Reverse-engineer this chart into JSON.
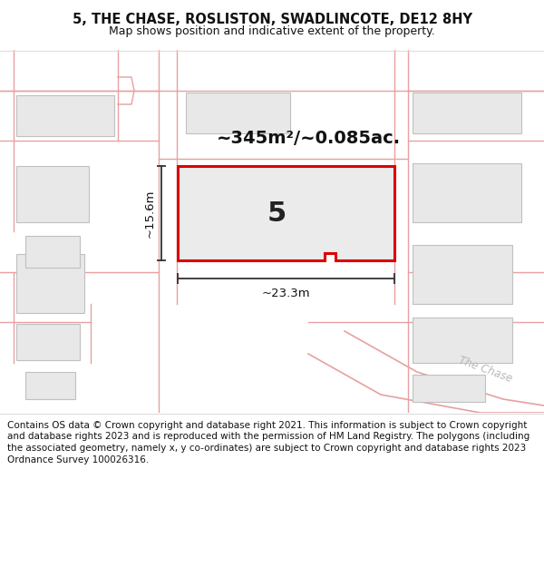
{
  "title_line1": "5, THE CHASE, ROSLISTON, SWADLINCOTE, DE12 8HY",
  "title_line2": "Map shows position and indicative extent of the property.",
  "area_text": "~345m²/~0.085ac.",
  "label_number": "5",
  "dim_width": "~23.3m",
  "dim_height": "~15.6m",
  "footer_text": "Contains OS data © Crown copyright and database right 2021. This information is subject to Crown copyright and database rights 2023 and is reproduced with the permission of HM Land Registry. The polygons (including the associated geometry, namely x, y co-ordinates) are subject to Crown copyright and database rights 2023 Ordnance Survey 100026316.",
  "map_bg": "#f7f6f4",
  "road_color": "#f2c4c4",
  "road_line_color": "#e8a0a0",
  "building_fill": "#e8e8e8",
  "building_outline": "#c0c0c0",
  "highlight_outline": "#dd0000",
  "highlight_fill": "#ebebeb",
  "road_label_color": "#b0b0b0",
  "dim_line_color": "#333333",
  "footer_bg": "#ffffff",
  "title_bg": "#ffffff",
  "separator_color": "#dddddd"
}
